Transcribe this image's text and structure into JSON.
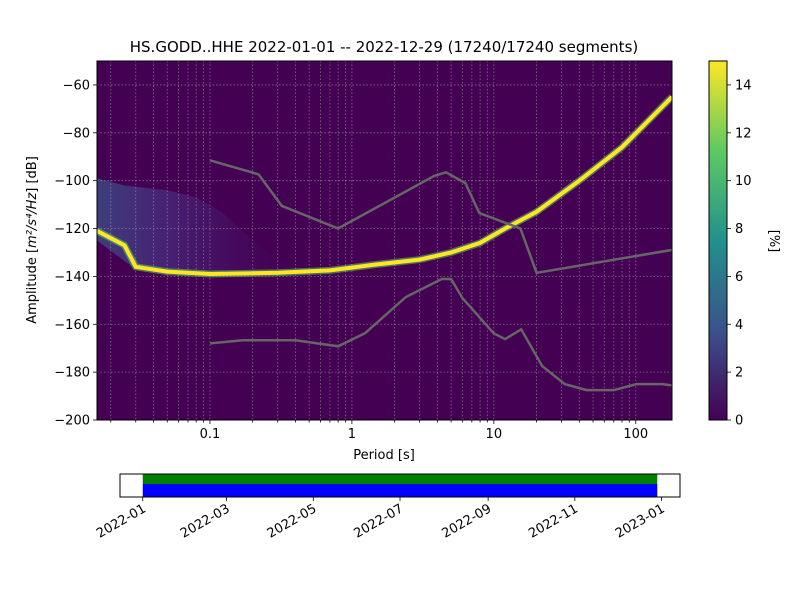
{
  "chart_data": [
    {
      "type": "heatmap",
      "title": "HS.GODD..HHE   2022-01-01 -- 2022-12-29  (17240/17240 segments)",
      "xlabel": "Period [s]",
      "ylabel_main": "Amplitude [",
      "ylabel_math": "m²/s⁴/Hz",
      "ylabel_end": "] [dB]",
      "x_scale": "log",
      "xlim": [
        0.016,
        180
      ],
      "ylim": [
        -200,
        -50
      ],
      "x_ticks": [
        {
          "value": 0.1,
          "label": "0.1"
        },
        {
          "value": 1,
          "label": "1"
        },
        {
          "value": 10,
          "label": "10"
        },
        {
          "value": 100,
          "label": "100"
        }
      ],
      "y_ticks": [
        {
          "value": -200,
          "label": "−200"
        },
        {
          "value": -180,
          "label": "−180"
        },
        {
          "value": -160,
          "label": "−160"
        },
        {
          "value": -140,
          "label": "−140"
        },
        {
          "value": -120,
          "label": "−120"
        },
        {
          "value": -100,
          "label": "−100"
        },
        {
          "value": -80,
          "label": "−80"
        },
        {
          "value": -60,
          "label": "−60"
        }
      ],
      "grid": true,
      "mode_curve": [
        {
          "period": 0.016,
          "db": -121
        },
        {
          "period": 0.025,
          "db": -127
        },
        {
          "period": 0.03,
          "db": -136
        },
        {
          "period": 0.05,
          "db": -138
        },
        {
          "period": 0.1,
          "db": -139
        },
        {
          "period": 0.3,
          "db": -138.5
        },
        {
          "period": 0.7,
          "db": -137.5
        },
        {
          "period": 1.5,
          "db": -135
        },
        {
          "period": 3,
          "db": -133
        },
        {
          "period": 5,
          "db": -130
        },
        {
          "period": 8,
          "db": -126
        },
        {
          "period": 12,
          "db": -120
        },
        {
          "period": 20,
          "db": -113
        },
        {
          "period": 40,
          "db": -100
        },
        {
          "period": 80,
          "db": -86
        },
        {
          "period": 180,
          "db": -65
        }
      ],
      "new_high_noise_model": [
        {
          "period": 0.1,
          "db": -91.5
        },
        {
          "period": 0.22,
          "db": -97.4
        },
        {
          "period": 0.32,
          "db": -110.5
        },
        {
          "period": 0.8,
          "db": -120
        },
        {
          "period": 3.8,
          "db": -98
        },
        {
          "period": 4.6,
          "db": -96.5
        },
        {
          "period": 6.3,
          "db": -101
        },
        {
          "period": 7.9,
          "db": -113.5
        },
        {
          "period": 15.4,
          "db": -120
        },
        {
          "period": 20,
          "db": -138.5
        },
        {
          "period": 354.8,
          "db": -126
        }
      ],
      "new_low_noise_model": [
        {
          "period": 0.1,
          "db": -168
        },
        {
          "period": 0.17,
          "db": -166.7
        },
        {
          "period": 0.4,
          "db": -166.7
        },
        {
          "period": 0.8,
          "db": -169.2
        },
        {
          "period": 1.24,
          "db": -163.7
        },
        {
          "period": 2.4,
          "db": -148.6
        },
        {
          "period": 4.3,
          "db": -141.1
        },
        {
          "period": 5,
          "db": -141.1
        },
        {
          "period": 6,
          "db": -149
        },
        {
          "period": 10,
          "db": -163.8
        },
        {
          "period": 12,
          "db": -166.2
        },
        {
          "period": 15.6,
          "db": -162.1
        },
        {
          "period": 21.9,
          "db": -177.5
        },
        {
          "period": 31.6,
          "db": -185
        },
        {
          "period": 45,
          "db": -187.5
        },
        {
          "period": 70,
          "db": -187.5
        },
        {
          "period": 101,
          "db": -185
        },
        {
          "period": 154,
          "db": -185
        },
        {
          "period": 328,
          "db": -187.5
        }
      ],
      "colors": {
        "background": "#440154",
        "noise_model_line": "#666666"
      }
    },
    {
      "type": "heatmap",
      "label": "colorbar",
      "clabel": "[%]",
      "clim": [
        0,
        15
      ],
      "ticks": [
        {
          "value": 0,
          "label": "0"
        },
        {
          "value": 2,
          "label": "2"
        },
        {
          "value": 4,
          "label": "4"
        },
        {
          "value": 6,
          "label": "6"
        },
        {
          "value": 8,
          "label": "8"
        },
        {
          "value": 10,
          "label": "10"
        },
        {
          "value": 12,
          "label": "12"
        },
        {
          "value": 14,
          "label": "14"
        }
      ],
      "colormap": [
        "#440154",
        "#3b528b",
        "#21918c",
        "#5ec962",
        "#fde725"
      ]
    },
    {
      "type": "bar",
      "label": "data-coverage",
      "x_range": [
        "2021-12-16",
        "2023-01-14"
      ],
      "coverage_start": "2022-01-01",
      "coverage_end": "2022-12-29",
      "colors": {
        "data": "#0000ff",
        "processed": "#008000"
      },
      "x_ticks": [
        "2022-01",
        "2022-03",
        "2022-05",
        "2022-07",
        "2022-09",
        "2022-11",
        "2023-01"
      ]
    }
  ]
}
